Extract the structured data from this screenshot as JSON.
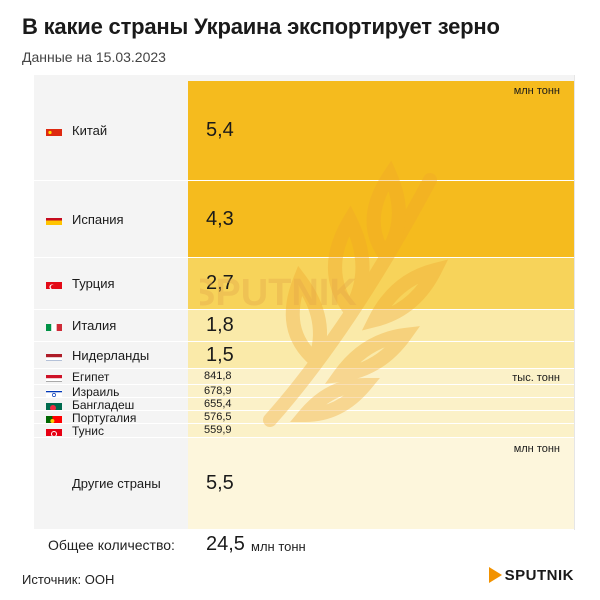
{
  "title": "В какие страны Украина экспортирует зерно",
  "subtitle": "Данные на 15.03.2023",
  "units": {
    "million": "млн тонн",
    "thousand": "тыс. тонн"
  },
  "colors": {
    "bar_big": "#f5bb1e",
    "bar_mid": "#f7d35a",
    "bar_light": "#faeaa9",
    "bar_pale": "#fbf1c8",
    "bar_other": "#fdf6dc"
  },
  "chart_data": {
    "type": "table",
    "title": "В какие страны Украина экспортирует зерно",
    "rows": [
      {
        "country": "Китай",
        "value": 5.4,
        "label": "5,4",
        "unit": "млн тонн",
        "flag": "flag-china"
      },
      {
        "country": "Испания",
        "value": 4.3,
        "label": "4,3",
        "unit": "млн тонн",
        "flag": "flag-spain"
      },
      {
        "country": "Турция",
        "value": 2.7,
        "label": "2,7",
        "unit": "млн тонн",
        "flag": "flag-turkey"
      },
      {
        "country": "Италия",
        "value": 1.8,
        "label": "1,8",
        "unit": "млн тонн",
        "flag": "flag-italy"
      },
      {
        "country": "Нидерланды",
        "value": 1.5,
        "label": "1,5",
        "unit": "млн тонн",
        "flag": "flag-netherlands"
      },
      {
        "country": "Египет",
        "value": 841.8,
        "label": "841,8",
        "unit": "тыс. тонн",
        "flag": "flag-egypt"
      },
      {
        "country": "Израиль",
        "value": 678.9,
        "label": "678,9",
        "unit": "тыс. тонн",
        "flag": "flag-israel"
      },
      {
        "country": "Бангладеш",
        "value": 655.4,
        "label": "655,4",
        "unit": "тыс. тонн",
        "flag": "flag-bangladesh"
      },
      {
        "country": "Португалия",
        "value": 576.5,
        "label": "576,5",
        "unit": "тыс. тонн",
        "flag": "flag-portugal"
      },
      {
        "country": "Тунис",
        "value": 559.9,
        "label": "559,9",
        "unit": "тыс. тонн",
        "flag": "flag-tunisia"
      },
      {
        "country": "Другие страны",
        "value": 5.5,
        "label": "5,5",
        "unit": "млн тонн",
        "flag": ""
      }
    ],
    "total": {
      "label": "Общее количество:",
      "value": 24.5,
      "value_text": "24,5",
      "unit": "млн тонн"
    }
  },
  "source": "Источник: ООН",
  "logo": "SPUTNIK",
  "watermark": "SPUTNIK"
}
